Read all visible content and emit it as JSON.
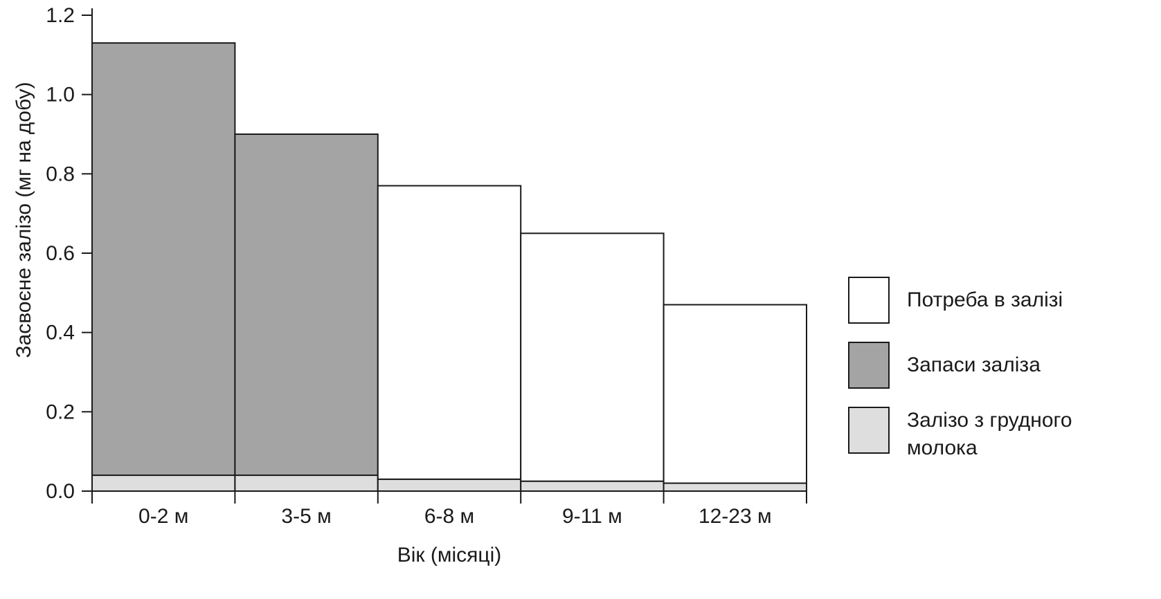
{
  "chart_data": {
    "type": "bar",
    "title": "",
    "xlabel": "Вік (місяці)",
    "ylabel": "Засвоєне залізо (мг на добу)",
    "ylim": [
      0,
      1.2
    ],
    "yticks": [
      "0.0",
      "0.2",
      "0.4",
      "0.6",
      "0.8",
      "1.0",
      "1.2"
    ],
    "grid": false,
    "legend_position": "right",
    "categories": [
      "0-2 м",
      "3-5 м",
      "6-8 м",
      "9-11 м",
      "12-23 м"
    ],
    "total_requirement": [
      1.13,
      0.9,
      0.77,
      0.65,
      0.47
    ],
    "series": [
      {
        "name": "Залізо з грудного молока",
        "key": "breast_milk",
        "values": [
          0.04,
          0.04,
          0.03,
          0.025,
          0.02
        ],
        "color": "#dedede"
      },
      {
        "name": "Запаси заліза",
        "key": "stores",
        "values": [
          1.09,
          0.86,
          0,
          0,
          0
        ],
        "color": "#a4a4a4"
      },
      {
        "name": "Потреба в залізі",
        "key": "requirement",
        "values": [
          0,
          0,
          0.74,
          0.625,
          0.45
        ],
        "color": "#ffffff"
      }
    ],
    "legend": [
      {
        "label": "Потреба в залізі",
        "color": "#ffffff"
      },
      {
        "label": "Запаси заліза",
        "color": "#a4a4a4"
      },
      {
        "label": "Залізо з грудного",
        "label2": "молока",
        "color": "#dedede"
      }
    ]
  }
}
